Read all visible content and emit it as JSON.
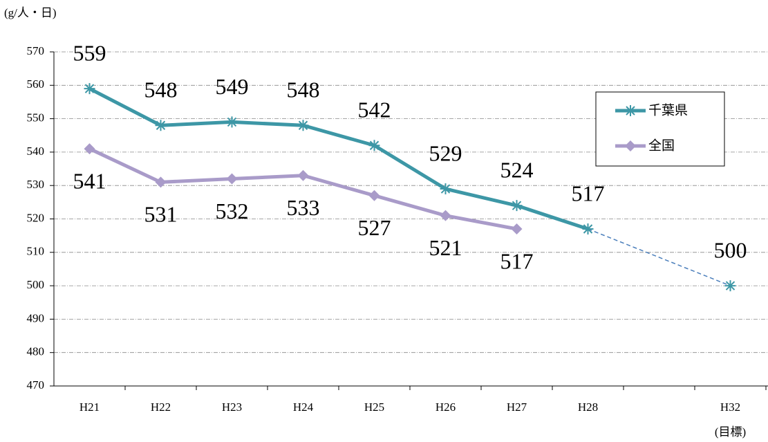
{
  "chart_data": {
    "type": "line",
    "y_axis_label": "(g/人・日)",
    "categories": [
      "H21",
      "H22",
      "H23",
      "H24",
      "H25",
      "H26",
      "H27",
      "H28",
      null,
      "H32"
    ],
    "category_note": "(目標)",
    "series": [
      {
        "name": "千葉県",
        "color": "#3d97a6",
        "marker": "asterisk",
        "label_position": "above",
        "gap_style": "dashed",
        "gap_color": "#4a7ebb",
        "values": [
          559,
          548,
          549,
          548,
          542,
          529,
          524,
          517,
          null,
          500
        ]
      },
      {
        "name": "全国",
        "color": "#a99bc9",
        "marker": "diamond",
        "label_position": "below",
        "values": [
          541,
          531,
          532,
          533,
          527,
          521,
          517,
          null,
          null,
          null
        ]
      }
    ],
    "ylim": [
      470,
      570
    ],
    "yticks": [
      470,
      480,
      490,
      500,
      510,
      520,
      530,
      540,
      550,
      560,
      570
    ],
    "grid": true,
    "legend": "upper right"
  }
}
